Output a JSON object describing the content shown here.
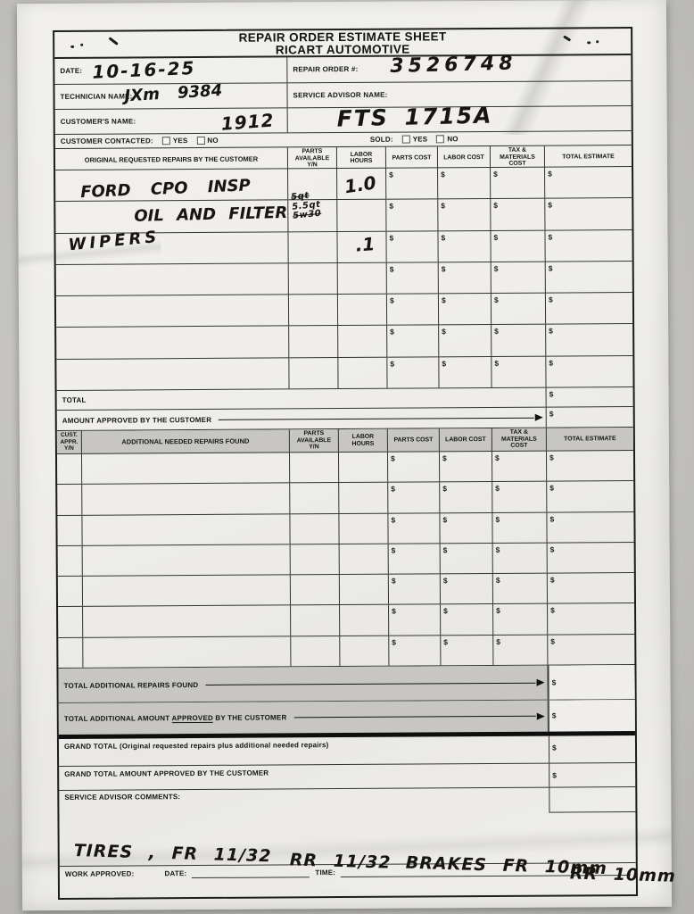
{
  "form": {
    "title_line1": "REPAIR ORDER ESTIMATE SHEET",
    "title_line2": "RICART AUTOMOTIVE",
    "currency": "$",
    "fields": {
      "date_label": "DATE:",
      "date_value": "10-16-25",
      "repair_order_label": "REPAIR ORDER #:",
      "repair_order_value": "3526748",
      "technician_label": "TECHNICIAN NAME:",
      "technician_value": "JXm 9384",
      "service_advisor_label": "SERVICE ADVISOR NAME:",
      "service_advisor_value": "",
      "customer_label": "CUSTOMER'S NAME:",
      "customer_value": "1912",
      "vehicle_tag_value": "FTS 1715A",
      "customer_contacted_label": "CUSTOMER CONTACTED:",
      "sold_label": "SOLD:",
      "yes_label": "YES",
      "no_label": "NO"
    },
    "table1": {
      "headers": {
        "description": "ORIGINAL REQUESTED REPAIRS BY THE CUSTOMER",
        "parts_available": "PARTS AVAILABLE Y/N",
        "labor_hours": "LABOR HOURS",
        "parts_cost": "PARTS COST",
        "labor_cost": "LABOR COST",
        "tax_materials": "TAX & MATERIALS COST",
        "total_estimate": "TOTAL ESTIMATE"
      },
      "rows": [
        {
          "description": "FORD CPO INSP",
          "labor_hours": "1.0",
          "parts_available_lines": []
        },
        {
          "description": "OIL AND FILTER",
          "labor_hours": "",
          "parts_available_lines": [
            {
              "text": "5qt",
              "struck": true
            },
            {
              "text": "5.5qt",
              "struck": false
            },
            {
              "text": "5w30",
              "struck": true
            }
          ]
        },
        {
          "description": "WIPERS",
          "labor_hours": ".1",
          "parts_available_lines": []
        },
        {},
        {},
        {},
        {}
      ],
      "total_label": "TOTAL",
      "amount_approved_label": "AMOUNT APPROVED BY THE CUSTOMER"
    },
    "table2": {
      "headers": {
        "cust_appr": "CUST. APPR. Y/N",
        "description": "ADDITIONAL NEEDED REPAIRS FOUND",
        "parts_available": "PARTS AVAILABLE Y/N",
        "labor_hours": "LABOR HOURS",
        "parts_cost": "PARTS COST",
        "labor_cost": "LABOR COST",
        "tax_materials": "TAX & MATERIALS COST",
        "total_estimate": "TOTAL ESTIMATE"
      },
      "row_count": 7,
      "total_additional_label": "TOTAL ADDITIONAL REPAIRS FOUND",
      "total_additional_approved": {
        "prefix": "TOTAL ADDITIONAL AMOUNT ",
        "underlined": "APPROVED",
        "suffix": " BY THE CUSTOMER"
      }
    },
    "summary": {
      "grand_total_label": "GRAND TOTAL (Original requested repairs plus additional needed repairs)",
      "grand_total_approved_label": "GRAND TOTAL AMOUNT APPROVED BY THE CUSTOMER",
      "service_advisor_comments_label": "SERVICE ADVISOR COMMENTS:"
    },
    "footer": {
      "work_approved_label": "WORK APPROVED:",
      "date_label": "DATE:",
      "time_label": "TIME:",
      "handwritten_notes": [
        "TIRES , FR  11/32",
        "RR  11/32",
        "BRAKES FR  10mm",
        "RR  10mm"
      ]
    }
  }
}
